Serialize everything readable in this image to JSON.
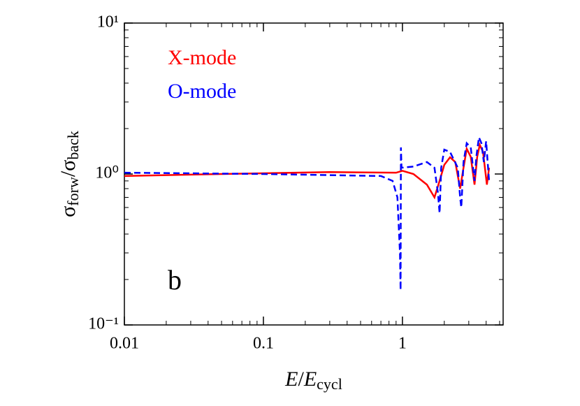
{
  "chart_data": {
    "type": "line",
    "xlabel": [
      "E",
      "/",
      "E",
      "cycl"
    ],
    "xlabel_styles": [
      "italic",
      "normal",
      "italic",
      "sub"
    ],
    "ylabel": [
      "σ",
      "forw",
      "/σ",
      "back"
    ],
    "ylabel_styles": [
      "normal",
      "sub",
      "normal",
      "sub"
    ],
    "annotation": "b",
    "xscale": "log",
    "yscale": "log",
    "xlim": [
      0.01,
      5.3
    ],
    "ylim": [
      0.1,
      10
    ],
    "xticks": [
      0.01,
      0.1,
      1
    ],
    "yticks": [
      {
        "value": 0.1,
        "label": "10⁻¹"
      },
      {
        "value": 1,
        "label": "10⁰"
      },
      {
        "value": 10,
        "label": "10¹"
      }
    ],
    "minor_ticks": true,
    "legend": "upper left",
    "series": [
      {
        "name": "X-mode",
        "color": "#ff0000",
        "dash": "solid",
        "x": [
          0.01,
          0.05,
          0.3,
          0.9,
          1.0,
          1.2,
          1.5,
          1.7,
          1.85,
          2.0,
          2.2,
          2.4,
          2.6,
          2.75,
          2.9,
          3.1,
          3.3,
          3.45,
          3.6,
          3.8,
          4.05,
          4.2
        ],
        "values": [
          0.97,
          1.0,
          1.03,
          1.02,
          1.05,
          1.0,
          0.85,
          0.7,
          0.9,
          1.15,
          1.29,
          1.2,
          0.8,
          1.1,
          1.47,
          1.3,
          0.85,
          1.3,
          1.56,
          1.4,
          0.85,
          1.1
        ]
      },
      {
        "name": "O-mode",
        "color": "#0000ff",
        "dash": "dashed",
        "x": [
          0.01,
          0.1,
          0.7,
          0.85,
          0.92,
          0.96,
          0.97,
          0.975,
          0.985,
          1.2,
          1.5,
          1.7,
          1.8,
          1.85,
          1.9,
          2.0,
          2.2,
          2.5,
          2.6,
          2.65,
          2.75,
          2.9,
          3.1,
          3.3,
          3.4,
          3.55,
          3.7,
          3.85,
          4.0,
          4.1,
          4.2
        ],
        "values": [
          1.02,
          1.0,
          0.97,
          0.9,
          0.7,
          0.3,
          0.17,
          1.5,
          1.1,
          1.12,
          1.2,
          1.1,
          0.75,
          0.55,
          1.1,
          1.45,
          1.4,
          1.1,
          0.7,
          0.6,
          1.2,
          1.6,
          1.5,
          0.9,
          1.3,
          1.75,
          1.6,
          1.2,
          1.65,
          1.2,
          0.9
        ]
      }
    ]
  }
}
